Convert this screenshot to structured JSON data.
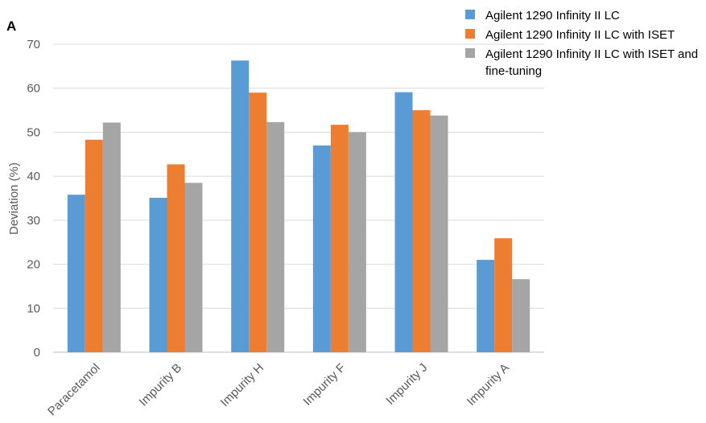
{
  "chart_data": {
    "type": "bar",
    "panel_label": "A",
    "title": "",
    "xlabel": "",
    "ylabel": "Deviation (%)",
    "ylim": [
      0,
      70
    ],
    "yticks": [
      0,
      10,
      20,
      30,
      40,
      50,
      60,
      70
    ],
    "grid": true,
    "legend_position": "top-right",
    "categories": [
      "Paracetamol",
      "Impurity B",
      "Impurity H",
      "Impurity F",
      "Impurity J",
      "Impurity A"
    ],
    "series": [
      {
        "name": "Agilent 1290 Infinity II LC",
        "color": "#5b9bd5",
        "values": [
          35.8,
          35.1,
          66.3,
          47.0,
          59.1,
          21.0
        ]
      },
      {
        "name": "Agilent 1290 Infinity II LC with ISET",
        "color": "#ed7d31",
        "values": [
          48.3,
          42.7,
          59.0,
          51.7,
          55.0,
          25.9
        ]
      },
      {
        "name": "Agilent 1290 Infinity II LC with ISET and fine-tuning",
        "color": "#a5a5a5",
        "values": [
          52.2,
          38.5,
          52.3,
          50.0,
          53.8,
          16.6
        ]
      }
    ]
  }
}
